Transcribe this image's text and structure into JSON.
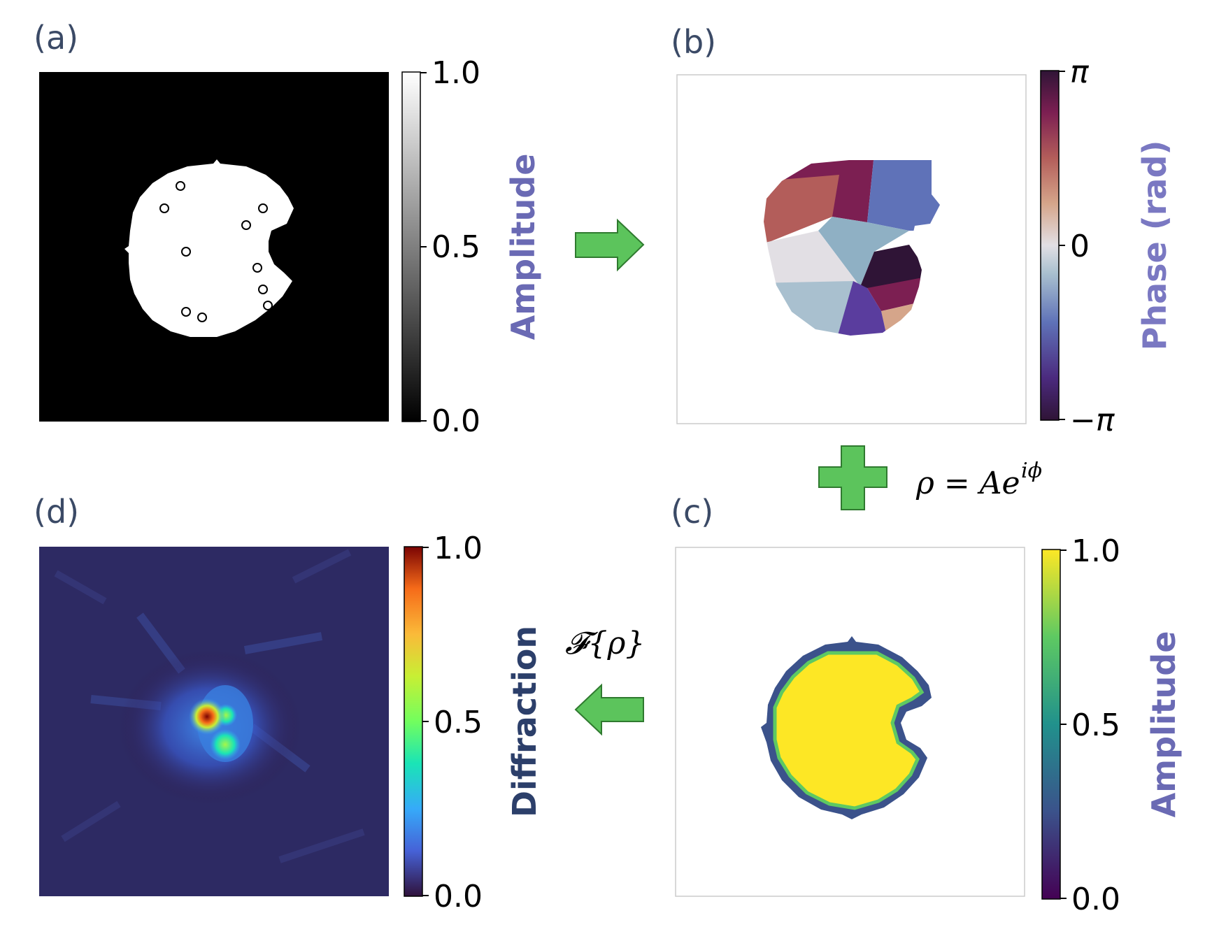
{
  "panels": {
    "a": {
      "label": "(a)",
      "colorbar_title": "Amplitude",
      "ticks": [
        "1.0",
        "0.5",
        "0.0"
      ]
    },
    "b": {
      "label": "(b)",
      "colorbar_title": "Phase (rad)",
      "ticks": [
        "π",
        "0",
        "−π"
      ]
    },
    "c": {
      "label": "(c)",
      "colorbar_title": "Amplitude",
      "ticks": [
        "1.0",
        "0.5",
        "0.0"
      ]
    },
    "d": {
      "label": "(d)",
      "colorbar_title": "Diffraction",
      "ticks": [
        "1.0",
        "0.5",
        "0.0"
      ]
    }
  },
  "equations": {
    "rho_main": "ρ = Ae",
    "rho_sup": "iϕ",
    "fourier": "𝓕{ρ}"
  },
  "colors": {
    "arrow_fill": "#5cc45c",
    "arrow_stroke": "#2f7a2f",
    "label_text": "#3b4a66",
    "amplitude_title": "#6a6ab4",
    "phase_title": "#7a78c2",
    "diffraction_title": "#2c3f6a"
  },
  "icons": {
    "arrow_right": "arrow-right-icon",
    "plus": "plus-icon",
    "arrow_left": "arrow-left-icon"
  }
}
